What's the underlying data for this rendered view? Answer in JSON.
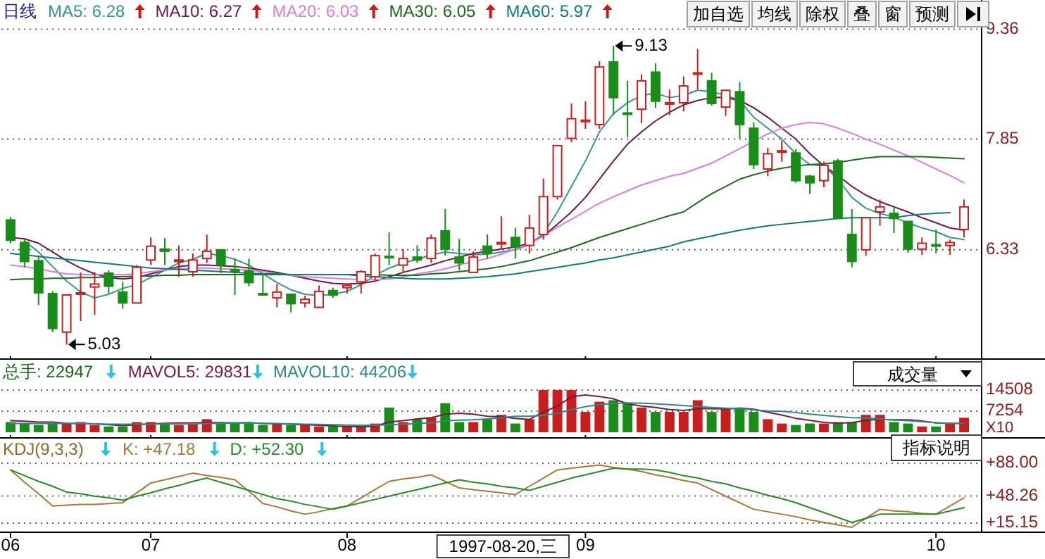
{
  "chart_data": [
    {
      "type": "candlestick",
      "title": "日线",
      "categories": [
        "06",
        null,
        null,
        null,
        null,
        null,
        null,
        null,
        null,
        null,
        "07",
        null,
        null,
        null,
        null,
        null,
        null,
        null,
        null,
        null,
        null,
        null,
        null,
        null,
        "08",
        null,
        null,
        null,
        null,
        null,
        null,
        null,
        null,
        null,
        null,
        null,
        null,
        null,
        null,
        null,
        null,
        "09",
        null,
        null,
        null,
        null,
        null,
        null,
        null,
        null,
        null,
        null,
        null,
        null,
        null,
        null,
        null,
        null,
        null,
        null,
        null,
        null,
        null,
        null,
        null,
        null,
        "10",
        null,
        null
      ],
      "ylim": [
        4.83,
        9.76
      ],
      "yticks": [
        6.33,
        7.85,
        9.36
      ],
      "grid": "y",
      "tick_labels": "y",
      "legend": "top left",
      "annotations": [
        "9.13",
        "5.03",
        "加自选",
        "均线",
        "除权",
        "叠",
        "窗",
        "预测"
      ],
      "series": [
        {
          "type": "candlestick",
          "ohlc": [
            [
              6.74,
              6.78,
              6.42,
              6.46
            ],
            [
              6.43,
              6.47,
              6.09,
              6.17
            ],
            [
              6.18,
              6.25,
              5.57,
              5.74
            ],
            [
              5.73,
              5.76,
              5.2,
              5.25
            ],
            [
              5.2,
              5.71,
              5.03,
              5.71
            ],
            [
              5.72,
              6.02,
              5.35,
              5.74
            ],
            [
              5.82,
              6.02,
              5.44,
              5.86
            ],
            [
              6.01,
              6.05,
              5.73,
              5.83
            ],
            [
              5.75,
              5.89,
              5.52,
              5.6
            ],
            [
              5.6,
              6.12,
              5.6,
              6.09
            ],
            [
              6.19,
              6.5,
              6.12,
              6.38
            ],
            [
              6.34,
              6.49,
              6.12,
              6.31
            ],
            [
              6.17,
              6.39,
              5.96,
              6.19
            ],
            [
              6.03,
              6.28,
              5.96,
              6.19
            ],
            [
              6.21,
              6.54,
              6.15,
              6.31
            ],
            [
              6.33,
              6.34,
              6.01,
              6.12
            ],
            [
              6.06,
              6.21,
              5.71,
              6.03
            ],
            [
              6.04,
              6.21,
              5.83,
              5.88
            ],
            [
              5.73,
              5.99,
              5.7,
              5.71
            ],
            [
              5.67,
              5.86,
              5.54,
              5.75
            ],
            [
              5.72,
              5.73,
              5.47,
              5.59
            ],
            [
              5.6,
              5.7,
              5.54,
              5.65
            ],
            [
              5.54,
              5.84,
              5.53,
              5.76
            ],
            [
              5.77,
              5.81,
              5.67,
              5.71
            ],
            [
              5.81,
              5.86,
              5.73,
              5.84
            ],
            [
              5.89,
              6.05,
              5.73,
              6.03
            ],
            [
              5.96,
              6.28,
              5.92,
              6.25
            ],
            [
              6.24,
              6.57,
              6.12,
              6.23
            ],
            [
              6.12,
              6.34,
              6.02,
              6.21
            ],
            [
              6.23,
              6.39,
              6.15,
              6.19
            ],
            [
              6.21,
              6.54,
              6.15,
              6.49
            ],
            [
              6.59,
              6.89,
              6.25,
              6.34
            ],
            [
              6.23,
              6.48,
              6.05,
              6.15
            ],
            [
              6.02,
              6.31,
              6.02,
              6.23
            ],
            [
              6.38,
              6.54,
              6.21,
              6.28
            ],
            [
              6.41,
              6.79,
              6.34,
              6.43
            ],
            [
              6.5,
              6.63,
              6.21,
              6.37
            ],
            [
              6.39,
              6.81,
              6.28,
              6.63
            ],
            [
              6.54,
              7.31,
              6.47,
              7.06
            ],
            [
              7.06,
              7.76,
              7.02,
              7.76
            ],
            [
              7.86,
              8.34,
              7.81,
              8.13
            ],
            [
              8.09,
              8.37,
              7.99,
              8.11
            ],
            [
              8.05,
              8.92,
              7.99,
              8.84
            ],
            [
              8.91,
              9.13,
              8.18,
              8.42
            ],
            [
              8.21,
              8.65,
              7.88,
              8.19
            ],
            [
              8.26,
              8.74,
              8.07,
              8.65
            ],
            [
              8.77,
              8.89,
              8.28,
              8.37
            ],
            [
              8.33,
              8.53,
              8.18,
              8.35
            ],
            [
              8.35,
              8.71,
              8.23,
              8.58
            ],
            [
              8.74,
              9.09,
              8.53,
              8.76
            ],
            [
              8.65,
              8.76,
              8.31,
              8.34
            ],
            [
              8.29,
              8.52,
              8.17,
              8.52
            ],
            [
              8.5,
              8.63,
              7.86,
              8.05
            ],
            [
              8.0,
              8.08,
              7.44,
              7.5
            ],
            [
              7.44,
              7.73,
              7.34,
              7.65
            ],
            [
              7.67,
              7.83,
              7.54,
              7.69
            ],
            [
              7.66,
              7.71,
              7.25,
              7.28
            ],
            [
              7.34,
              7.36,
              7.1,
              7.25
            ],
            [
              7.28,
              7.54,
              7.19,
              7.49
            ],
            [
              7.55,
              7.58,
              6.76,
              6.76
            ],
            [
              6.54,
              6.89,
              6.09,
              6.17
            ],
            [
              6.33,
              6.77,
              6.25,
              6.77
            ],
            [
              6.85,
              7.02,
              6.66,
              6.92
            ],
            [
              6.83,
              6.92,
              6.56,
              6.76
            ],
            [
              6.72,
              6.72,
              6.29,
              6.34
            ],
            [
              6.34,
              6.5,
              6.26,
              6.42
            ],
            [
              6.4,
              6.61,
              6.28,
              6.38
            ],
            [
              6.39,
              6.47,
              6.26,
              6.43
            ],
            [
              6.61,
              7.02,
              6.5,
              6.92
            ]
          ],
          "colors": [
            "#1a8c1a",
            "#1a8c1a",
            "#1a8c1a",
            "#1a8c1a",
            "#c81e1e",
            "#c81e1e",
            "#c81e1e",
            "#1a8c1a",
            "#1a8c1a",
            "#c81e1e",
            "#c81e1e",
            "#1a8c1a",
            "#c81e1e",
            "#c81e1e",
            "#c81e1e",
            "#1a8c1a",
            "#1a8c1a",
            "#1a8c1a",
            "#1a8c1a",
            "#c81e1e",
            "#1a8c1a",
            "#c81e1e",
            "#c81e1e",
            "#1a8c1a",
            "#c81e1e",
            "#c81e1e",
            "#c81e1e",
            "#1a8c1a",
            "#c81e1e",
            "#1a8c1a",
            "#c81e1e",
            "#1a8c1a",
            "#1a8c1a",
            "#c81e1e",
            "#1a8c1a",
            "#c81e1e",
            "#1a8c1a",
            "#c81e1e",
            "#c81e1e",
            "#c81e1e",
            "#c81e1e",
            "#c81e1e",
            "#c81e1e",
            "#1a8c1a",
            "#1a8c1a",
            "#c81e1e",
            "#1a8c1a",
            "#c81e1e",
            "#c81e1e",
            "#c81e1e",
            "#1a8c1a",
            "#c81e1e",
            "#1a8c1a",
            "#1a8c1a",
            "#c81e1e",
            "#c81e1e",
            "#1a8c1a",
            "#1a8c1a",
            "#c81e1e",
            "#1a8c1a",
            "#1a8c1a",
            "#c81e1e",
            "#c81e1e",
            "#1a8c1a",
            "#1a8c1a",
            "#c81e1e",
            "#1a8c1a",
            "#c81e1e",
            "#c81e1e"
          ]
        },
        {
          "type": "line",
          "name": "MA5: 6.28",
          "color": "#3a9494",
          "values": [
            null,
            6.45,
            6.3,
            6.1,
            5.9,
            5.75,
            5.67,
            5.72,
            5.8,
            5.85,
            5.95,
            6.05,
            6.15,
            6.2,
            6.28,
            6.25,
            6.2,
            6.12,
            6.0,
            5.88,
            5.78,
            5.72,
            5.7,
            5.72,
            5.76,
            5.85,
            5.98,
            6.08,
            6.15,
            6.2,
            6.26,
            6.3,
            6.28,
            6.26,
            6.27,
            6.3,
            6.33,
            6.4,
            6.55,
            6.85,
            7.2,
            7.55,
            7.95,
            8.2,
            8.35,
            8.45,
            8.48,
            8.42,
            8.45,
            8.52,
            8.5,
            8.45,
            8.38,
            8.15,
            8.0,
            7.85,
            7.65,
            7.5,
            7.48,
            7.3,
            7.05,
            6.9,
            6.83,
            6.78,
            6.7,
            6.63,
            6.58,
            6.5,
            6.47
          ]
        },
        {
          "type": "line",
          "name": "MA10: 6.27",
          "color": "#6b1a4a",
          "values": [
            6.5,
            6.48,
            6.42,
            6.3,
            6.18,
            6.08,
            6.0,
            5.95,
            5.93,
            5.95,
            6.0,
            6.05,
            6.1,
            6.12,
            6.12,
            6.11,
            6.1,
            6.08,
            6.05,
            6.02,
            5.98,
            5.94,
            5.9,
            5.87,
            5.86,
            5.87,
            5.9,
            5.96,
            6.02,
            6.07,
            6.12,
            6.18,
            6.23,
            6.28,
            6.31,
            6.34,
            6.37,
            6.42,
            6.52,
            6.68,
            6.85,
            7.05,
            7.3,
            7.55,
            7.78,
            7.95,
            8.1,
            8.22,
            8.32,
            8.38,
            8.42,
            8.42,
            8.38,
            8.28,
            8.15,
            8.0,
            7.85,
            7.65,
            7.48,
            7.35,
            7.2,
            7.08,
            6.99,
            6.92,
            6.85,
            6.77,
            6.7,
            6.63,
            6.6
          ]
        },
        {
          "type": "line",
          "name": "MA20: 6.03",
          "color": "#e07ae0",
          "values": [
            6.12,
            6.1,
            6.07,
            6.03,
            6.0,
            5.99,
            5.99,
            5.99,
            5.99,
            6.0,
            6.03,
            6.05,
            6.07,
            6.08,
            6.08,
            6.07,
            6.06,
            6.05,
            6.03,
            6.0,
            5.98,
            5.96,
            5.95,
            5.94,
            5.93,
            5.92,
            5.92,
            5.93,
            5.96,
            6.0,
            6.03,
            6.07,
            6.12,
            6.17,
            6.21,
            6.27,
            6.34,
            6.41,
            6.52,
            6.64,
            6.75,
            6.86,
            6.97,
            7.06,
            7.14,
            7.22,
            7.28,
            7.34,
            7.38,
            7.45,
            7.52,
            7.62,
            7.72,
            7.82,
            7.92,
            8.0,
            8.05,
            8.08,
            8.06,
            8.0,
            7.93,
            7.85,
            7.78,
            7.7,
            7.62,
            7.53,
            7.44,
            7.35,
            7.25
          ]
        },
        {
          "type": "line",
          "name": "MA30: 6.05",
          "color": "#1f6a1f",
          "values": [
            5.92,
            5.93,
            5.93,
            5.94,
            5.94,
            5.95,
            5.95,
            5.96,
            5.96,
            5.97,
            5.97,
            5.98,
            5.98,
            5.99,
            5.99,
            5.99,
            5.99,
            5.99,
            5.99,
            5.99,
            5.99,
            5.99,
            5.99,
            5.99,
            5.99,
            5.99,
            5.99,
            5.98,
            5.98,
            5.98,
            6.0,
            6.01,
            6.03,
            6.05,
            6.07,
            6.1,
            6.14,
            6.18,
            6.24,
            6.3,
            6.36,
            6.43,
            6.5,
            6.56,
            6.62,
            6.68,
            6.74,
            6.8,
            6.85,
            6.98,
            7.1,
            7.2,
            7.3,
            7.36,
            7.41,
            7.45,
            7.48,
            7.5,
            7.51,
            7.53,
            7.56,
            7.59,
            7.61,
            7.61,
            7.61,
            7.61,
            7.6,
            7.59,
            7.58
          ]
        },
        {
          "type": "line",
          "name": "MA60: 5.97",
          "color": "#127a7a",
          "values": [
            6.28,
            6.26,
            6.24,
            6.22,
            6.2,
            6.18,
            6.16,
            6.14,
            6.12,
            6.1,
            6.08,
            6.07,
            6.06,
            6.05,
            6.04,
            6.03,
            6.02,
            6.01,
            6.0,
            6.0,
            5.99,
            5.99,
            5.99,
            5.99,
            5.99,
            5.97,
            5.96,
            5.95,
            5.94,
            5.93,
            5.93,
            5.93,
            5.94,
            5.95,
            5.96,
            5.98,
            6.0,
            6.03,
            6.06,
            6.09,
            6.12,
            6.15,
            6.19,
            6.22,
            6.26,
            6.3,
            6.34,
            6.38,
            6.44,
            6.48,
            6.52,
            6.56,
            6.6,
            6.63,
            6.66,
            6.68,
            6.7,
            6.72,
            6.74,
            6.76,
            6.77,
            6.77,
            6.77,
            6.77,
            6.8,
            6.82,
            6.83,
            6.84,
            null
          ]
        }
      ]
    },
    {
      "type": "bar",
      "title": "总手: 22947",
      "categories": [
        "06",
        null,
        null,
        null,
        null,
        null,
        null,
        null,
        null,
        null,
        "07",
        null,
        null,
        null,
        null,
        null,
        null,
        null,
        null,
        null,
        null,
        null,
        null,
        null,
        "08",
        null,
        null,
        null,
        null,
        null,
        null,
        null,
        null,
        null,
        null,
        null,
        null,
        null,
        null,
        null,
        null,
        "09",
        null,
        null,
        null,
        null,
        null,
        null,
        null,
        null,
        null,
        null,
        null,
        null,
        null,
        null,
        null,
        null,
        null,
        null,
        null,
        null,
        null,
        null,
        null,
        null,
        "10",
        null,
        null
      ],
      "ylim": [
        0,
        14508
      ],
      "yticks": [
        7254,
        14508
      ],
      "ylabel": "X10",
      "grid": "y",
      "tick_labels": "y",
      "legend": "top left",
      "annotations": [
        "成交量"
      ],
      "series": [
        {
          "type": "bar",
          "values": [
            3500,
            3000,
            2500,
            3000,
            3000,
            3500,
            2500,
            2000,
            2000,
            3500,
            3500,
            3000,
            2500,
            3000,
            4500,
            3000,
            3000,
            3000,
            2500,
            3000,
            2500,
            2500,
            2000,
            2000,
            2000,
            2000,
            3000,
            8500,
            3500,
            4500,
            5000,
            10000,
            3500,
            3500,
            4500,
            6000,
            3000,
            4500,
            14500,
            14500,
            14500,
            7000,
            10500,
            11000,
            10000,
            8500,
            7000,
            7000,
            7000,
            11000,
            7000,
            8000,
            8500,
            7000,
            4500,
            3000,
            2500,
            3000,
            3000,
            3500,
            3500,
            6000,
            6000,
            3500,
            3000,
            2000,
            2000,
            3000,
            5000
          ],
          "colors": [
            "#1a8c1a",
            "#1a8c1a",
            "#1a8c1a",
            "#1a8c1a",
            "#c81e1e",
            "#c81e1e",
            "#c81e1e",
            "#1a8c1a",
            "#1a8c1a",
            "#c81e1e",
            "#c81e1e",
            "#1a8c1a",
            "#c81e1e",
            "#c81e1e",
            "#c81e1e",
            "#1a8c1a",
            "#1a8c1a",
            "#1a8c1a",
            "#1a8c1a",
            "#c81e1e",
            "#1a8c1a",
            "#c81e1e",
            "#c81e1e",
            "#1a8c1a",
            "#c81e1e",
            "#c81e1e",
            "#c81e1e",
            "#1a8c1a",
            "#c81e1e",
            "#1a8c1a",
            "#c81e1e",
            "#1a8c1a",
            "#1a8c1a",
            "#c81e1e",
            "#1a8c1a",
            "#c81e1e",
            "#1a8c1a",
            "#c81e1e",
            "#c81e1e",
            "#c81e1e",
            "#c81e1e",
            "#c81e1e",
            "#c81e1e",
            "#1a8c1a",
            "#1a8c1a",
            "#c81e1e",
            "#1a8c1a",
            "#c81e1e",
            "#c81e1e",
            "#c81e1e",
            "#1a8c1a",
            "#c81e1e",
            "#1a8c1a",
            "#1a8c1a",
            "#c81e1e",
            "#c81e1e",
            "#1a8c1a",
            "#1a8c1a",
            "#c81e1e",
            "#1a8c1a",
            "#1a8c1a",
            "#c81e1e",
            "#c81e1e",
            "#1a8c1a",
            "#1a8c1a",
            "#c81e1e",
            "#1a8c1a",
            "#c81e1e",
            "#c81e1e"
          ]
        },
        {
          "type": "line",
          "name": "MAVOL5: 29831",
          "color": "#7a1a3a",
          "values": [
            4000,
            3800,
            3500,
            3500,
            3100,
            3000,
            2900,
            2600,
            2300,
            2600,
            2900,
            3100,
            3200,
            3200,
            3300,
            3300,
            3200,
            3300,
            3000,
            2900,
            2800,
            2600,
            2400,
            2200,
            2000,
            1900,
            2100,
            3500,
            4000,
            4600,
            5000,
            6200,
            6500,
            6200,
            5500,
            5300,
            4800,
            4400,
            7000,
            9000,
            12200,
            12800,
            12300,
            11500,
            9800,
            9000,
            8500,
            7800,
            7500,
            8100,
            8100,
            8000,
            8300,
            7900,
            6900,
            5900,
            4800,
            4100,
            3400,
            3100,
            3300,
            4100,
            4400,
            4300,
            4300,
            3900,
            3200,
            3100,
            3000
          ]
        },
        {
          "type": "line",
          "name": "MAVOL10: 44206",
          "color": "#2a8a8a",
          "values": [
            3000,
            3000,
            3000,
            3000,
            3000,
            3000,
            2900,
            2800,
            2800,
            2800,
            2800,
            2900,
            2900,
            2900,
            3000,
            3100,
            3200,
            3200,
            3100,
            3000,
            2900,
            2800,
            2700,
            2600,
            2500,
            2400,
            2400,
            2600,
            2800,
            3000,
            3200,
            3900,
            4200,
            4300,
            4600,
            5000,
            5500,
            5500,
            5800,
            6500,
            7800,
            8800,
            9500,
            9900,
            10100,
            10000,
            9800,
            9500,
            9200,
            8800,
            8500,
            8300,
            8100,
            7700,
            7300,
            7200,
            6800,
            6200,
            5800,
            5400,
            5000,
            4900,
            4600,
            4200,
            4000,
            3600,
            3300,
            3000,
            3000
          ]
        }
      ]
    },
    {
      "type": "line",
      "title": "KDJ(9,3,3)",
      "categories": [
        "06",
        null,
        null,
        null,
        null,
        null,
        null,
        null,
        null,
        null,
        "07",
        null,
        null,
        null,
        null,
        null,
        null,
        null,
        null,
        null,
        null,
        null,
        null,
        null,
        "08",
        null,
        null,
        null,
        null,
        null,
        null,
        null,
        null,
        null,
        null,
        null,
        null,
        null,
        null,
        null,
        null,
        "09",
        null,
        null,
        null,
        null,
        null,
        null,
        null,
        null,
        null,
        null,
        null,
        null,
        null,
        null,
        null,
        null,
        null,
        null,
        null,
        null,
        null,
        null,
        null,
        null,
        "10",
        null,
        null
      ],
      "ylim": [
        4,
        119
      ],
      "yticks": [
        {
          "value": 88,
          "label": "+88.00"
        },
        {
          "value": 48.26,
          "label": "+48.26"
        },
        {
          "value": 15.15,
          "label": "+15.15"
        }
      ],
      "grid": "y",
      "legend": "top left",
      "annotations": [
        "指标说明",
        "1997-08-20,三"
      ],
      "series": [
        {
          "name": "K: +47.18",
          "color": "#a87838",
          "values": [
            80,
            65,
            51,
            36,
            37,
            38,
            38,
            39,
            40,
            52,
            64,
            68,
            72,
            76,
            73,
            71,
            68,
            54,
            39,
            35,
            30,
            26,
            29,
            33,
            36,
            46,
            56,
            66,
            69,
            71,
            74,
            66,
            58,
            56,
            54,
            52,
            50,
            60,
            70,
            80,
            82,
            84,
            86,
            83,
            81,
            78,
            74,
            71,
            67,
            64,
            56,
            48,
            40,
            32,
            29,
            26,
            23,
            19,
            16,
            13,
            10,
            21,
            32,
            30,
            29,
            27,
            26,
            36,
            46
          ]
        },
        {
          "name": "D: +52.30",
          "color": "#2a8a2a",
          "values": [
            80,
            73,
            66,
            60,
            53,
            51,
            48,
            46,
            43,
            48,
            52,
            57,
            61,
            66,
            70,
            65,
            60,
            55,
            50,
            45,
            42,
            38,
            35,
            32,
            36,
            40,
            44,
            48,
            52,
            56,
            60,
            64,
            68,
            65,
            63,
            60,
            58,
            55,
            60,
            65,
            70,
            74,
            78,
            82,
            81,
            81,
            80,
            77,
            73,
            70,
            66,
            63,
            58,
            54,
            49,
            45,
            40,
            34,
            28,
            22,
            16,
            21,
            26,
            26,
            26,
            26,
            26,
            30,
            34
          ]
        }
      ]
    }
  ]
}
